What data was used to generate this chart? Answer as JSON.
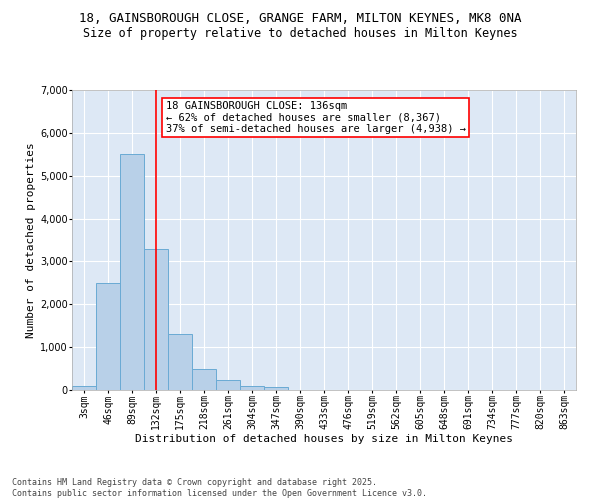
{
  "title_line1": "18, GAINSBOROUGH CLOSE, GRANGE FARM, MILTON KEYNES, MK8 0NA",
  "title_line2": "Size of property relative to detached houses in Milton Keynes",
  "xlabel": "Distribution of detached houses by size in Milton Keynes",
  "ylabel": "Number of detached properties",
  "categories": [
    "3sqm",
    "46sqm",
    "89sqm",
    "132sqm",
    "175sqm",
    "218sqm",
    "261sqm",
    "304sqm",
    "347sqm",
    "390sqm",
    "433sqm",
    "476sqm",
    "519sqm",
    "562sqm",
    "605sqm",
    "648sqm",
    "691sqm",
    "734sqm",
    "777sqm",
    "820sqm",
    "863sqm"
  ],
  "values": [
    100,
    2500,
    5500,
    3300,
    1300,
    500,
    225,
    100,
    60,
    0,
    0,
    0,
    0,
    0,
    0,
    0,
    0,
    0,
    0,
    0,
    0
  ],
  "bar_color": "#b8d0e8",
  "bar_edge_color": "#6aaad4",
  "vline_x": 3,
  "vline_color": "red",
  "annotation_text": "18 GAINSBOROUGH CLOSE: 136sqm\n← 62% of detached houses are smaller (8,367)\n37% of semi-detached houses are larger (4,938) →",
  "annotation_box_color": "white",
  "annotation_box_edge_color": "red",
  "ylim": [
    0,
    7000
  ],
  "yticks": [
    0,
    1000,
    2000,
    3000,
    4000,
    5000,
    6000,
    7000
  ],
  "background_color": "#dde8f5",
  "grid_color": "white",
  "footer_text": "Contains HM Land Registry data © Crown copyright and database right 2025.\nContains public sector information licensed under the Open Government Licence v3.0.",
  "title_fontsize": 9,
  "subtitle_fontsize": 8.5,
  "axis_label_fontsize": 8,
  "tick_fontsize": 7,
  "annotation_fontsize": 7.5,
  "footer_fontsize": 6
}
